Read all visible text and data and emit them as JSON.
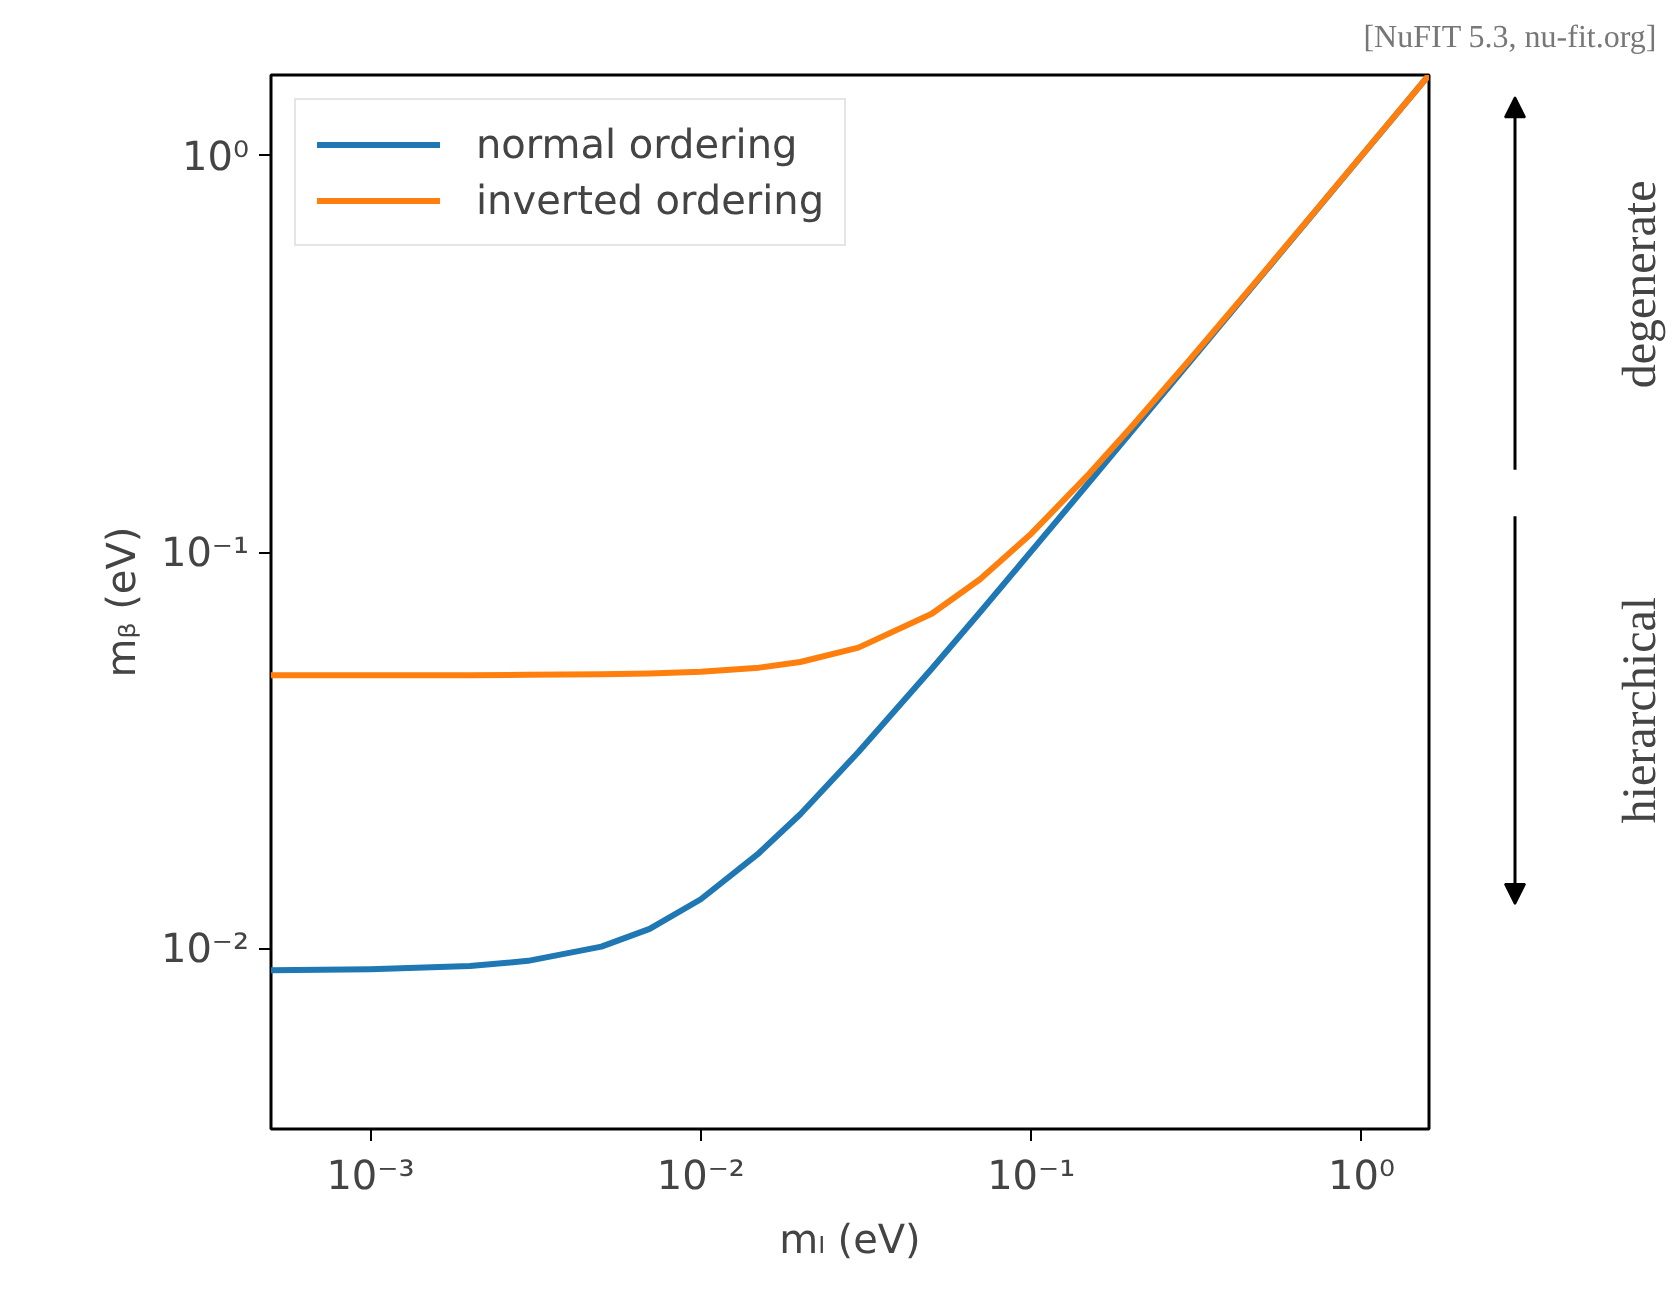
{
  "chart_data": {
    "type": "line",
    "xlabel": "mₗ (eV)",
    "ylabel": "mᵦ (eV)",
    "annotations": [
      "[NuFIT 5.3, nu-fit.org]",
      "degenerate",
      "hierarchical"
    ],
    "x": [
      0.0005,
      0.001,
      0.002,
      0.003,
      0.005,
      0.007,
      0.01,
      0.015,
      0.02,
      0.03,
      0.05,
      0.07,
      0.1,
      0.15,
      0.2,
      0.3,
      0.5,
      0.7,
      1.0,
      1.6
    ],
    "series": [
      {
        "name": "normal ordering",
        "color": "#1f77b4",
        "values": [
          0.0088,
          0.00886,
          0.00902,
          0.0093,
          0.0101,
          0.0112,
          0.0133,
          0.0174,
          0.0218,
          0.0313,
          0.0508,
          0.0705,
          0.1004,
          0.1503,
          0.2002,
          0.3001,
          0.5,
          0.7,
          1.0,
          1.6
        ]
      },
      {
        "name": "inverted ordering",
        "color": "#ff7f0e",
        "values": [
          0.0489,
          0.0489,
          0.0489,
          0.049,
          0.0492,
          0.0494,
          0.0499,
          0.0511,
          0.0528,
          0.0574,
          0.0699,
          0.0854,
          0.1113,
          0.1578,
          0.2059,
          0.304,
          0.5024,
          0.7017,
          1.0012,
          1.6
        ]
      }
    ],
    "log": "xy",
    "xlim": [
      0.0005,
      1.6
    ],
    "ylim": [
      0.0035,
      1.6
    ],
    "xticks": [
      {
        "value": 0.001,
        "label": "10⁻³"
      },
      {
        "value": 0.01,
        "label": "10⁻²"
      },
      {
        "value": 0.1,
        "label": "10⁻¹"
      },
      {
        "value": 1,
        "label": "10⁰"
      }
    ],
    "yticks": [
      {
        "value": 0.01,
        "label": "10⁻²"
      },
      {
        "value": 0.1,
        "label": "10⁻¹"
      },
      {
        "value": 1,
        "label": "10⁰"
      }
    ],
    "grid": false,
    "legend": "top left",
    "line_style": "solid",
    "marker": "none"
  }
}
